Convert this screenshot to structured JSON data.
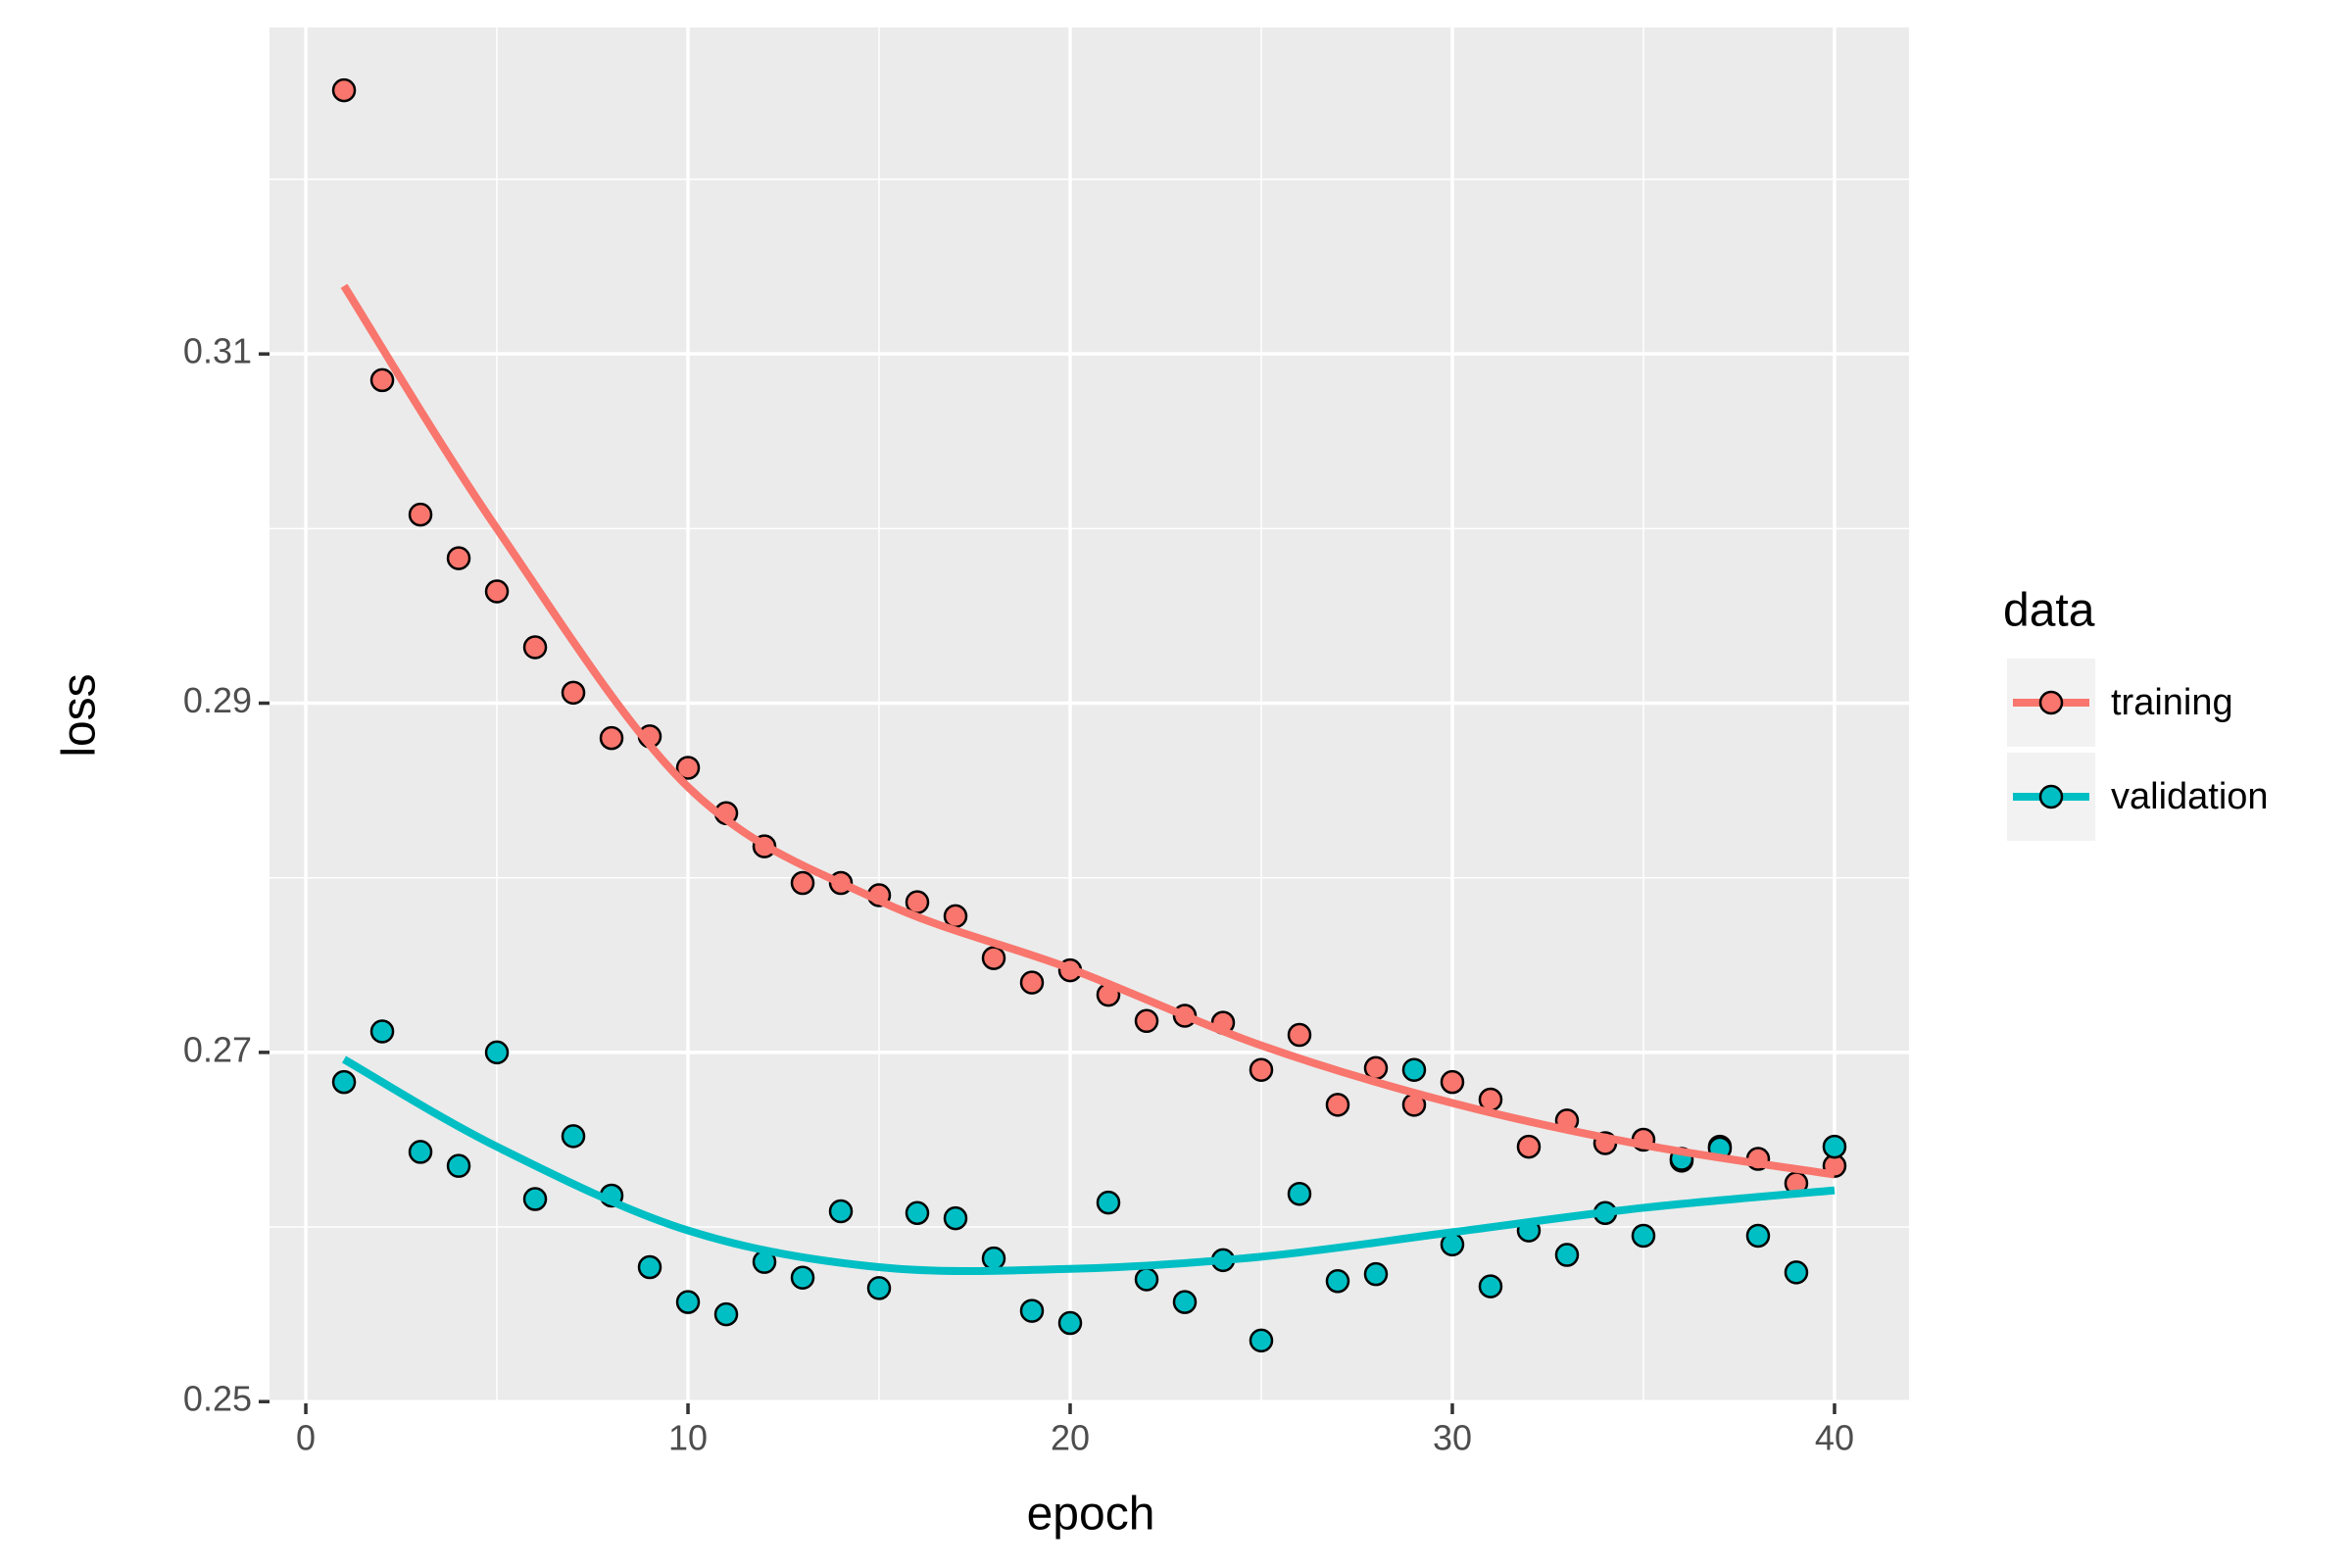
{
  "chart_data": {
    "type": "scatter",
    "x_label": "epoch",
    "y_label": "loss",
    "legend_title": "data",
    "legend_position": "right",
    "grid": true,
    "xlim": [
      -0.95,
      41.95
    ],
    "xticks": [
      0,
      10,
      20,
      30,
      40
    ],
    "minor_xticks": [
      5,
      15,
      25,
      35
    ],
    "ylim": [
      0.2499,
      0.3287
    ],
    "yticks": [
      0.25,
      0.27,
      0.29,
      0.31
    ],
    "minor_yticks": [
      0.26,
      0.28,
      0.3,
      0.32
    ],
    "x": [
      1,
      2,
      3,
      4,
      5,
      6,
      7,
      8,
      9,
      10,
      11,
      12,
      13,
      14,
      15,
      16,
      17,
      18,
      19,
      20,
      21,
      22,
      23,
      24,
      25,
      26,
      27,
      28,
      29,
      30,
      31,
      32,
      33,
      34,
      35,
      36,
      37,
      38,
      39,
      40
    ],
    "smooth_x": [
      1,
      5,
      10,
      15,
      20,
      25,
      30,
      35,
      40
    ],
    "series": [
      {
        "name": "training",
        "color": "#F8766D",
        "values": [
          0.3251,
          0.3085,
          0.3008,
          0.2983,
          0.2964,
          0.2932,
          0.2906,
          0.288,
          0.2881,
          0.2863,
          0.2837,
          0.2818,
          0.2797,
          0.2797,
          0.279,
          0.2786,
          0.2778,
          0.2754,
          0.274,
          0.2747,
          0.2733,
          0.2718,
          0.2721,
          0.2717,
          0.269,
          0.271,
          0.267,
          0.2691,
          0.267,
          0.2683,
          0.2673,
          0.2646,
          0.2661,
          0.2648,
          0.265,
          0.2638,
          0.2646,
          0.2639,
          0.2625,
          0.2635
        ],
        "smooth": [
          0.3139,
          0.3,
          0.2852,
          0.2787,
          0.2748,
          0.2704,
          0.2671,
          0.2647,
          0.263
        ]
      },
      {
        "name": "validation",
        "color": "#00BFC4",
        "values": [
          0.2683,
          0.2712,
          0.2643,
          0.2635,
          0.27,
          0.2616,
          0.2652,
          0.2618,
          0.2577,
          0.2557,
          0.255,
          0.258,
          0.2571,
          0.2609,
          0.2565,
          0.2608,
          0.2605,
          0.2582,
          0.2552,
          0.2545,
          0.2614,
          0.257,
          0.2557,
          0.2581,
          0.2535,
          0.2619,
          0.2569,
          0.2573,
          0.269,
          0.259,
          0.2566,
          0.2598,
          0.2584,
          0.2608,
          0.2595,
          0.2639,
          0.2645,
          0.2595,
          0.2574,
          0.2646
        ],
        "smooth": [
          0.2696,
          0.2646,
          0.2598,
          0.2577,
          0.2576,
          0.2583,
          0.2597,
          0.2611,
          0.2621
        ]
      }
    ]
  }
}
